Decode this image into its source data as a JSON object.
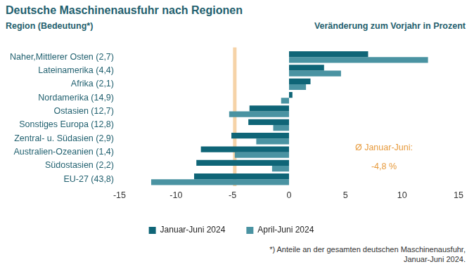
{
  "chart_data": {
    "type": "bar",
    "title": "Deutsche Maschinenausfuhr nach Regionen",
    "y_label": "Region (Bedeutung*)",
    "x_label": "Veränderung zum Vorjahr in Prozent",
    "orientation": "horizontal",
    "categories": [
      "Naher,Mittlerer Osten (2,7)",
      "Lateinamerika (4,4)",
      "Afrika (2,1)",
      "Nordamerika (14,9)",
      "Ostasien (12,7)",
      "Sonstiges Europa (12,8)",
      "Zentral- u. Südasien (2,9)",
      "Australien-Ozeanien (1,4)",
      "Südostasien (2,2)",
      "EU-27 (43,8)"
    ],
    "series": [
      {
        "name": "Januar-Juni 2024",
        "color": "#0f6577",
        "values": [
          7.0,
          3.1,
          1.9,
          0.3,
          -3.5,
          -3.6,
          -5.1,
          -7.8,
          -8.2,
          -8.4
        ]
      },
      {
        "name": "April-Juni 2024",
        "color": "#4a93a2",
        "values": [
          12.3,
          4.6,
          1.5,
          -0.7,
          -5.3,
          -1.4,
          -2.9,
          -4.8,
          -1.5,
          -12.2
        ]
      }
    ],
    "xlim": [
      -15,
      15
    ],
    "xticks": [
      -15,
      -10,
      -5,
      0,
      5,
      10,
      15
    ],
    "grid": false,
    "legend": "bottom",
    "reference_line": {
      "value": -4.8,
      "label": "Ø Januar-Juni:",
      "value_label": "-4,8 %",
      "color": "#f6d3a8",
      "text_color": "#e79a3c"
    },
    "footnote": [
      "*) Anteile an der gesamten deutschen Maschinenausfuhr,",
      "Januar-Juni 2024."
    ]
  }
}
